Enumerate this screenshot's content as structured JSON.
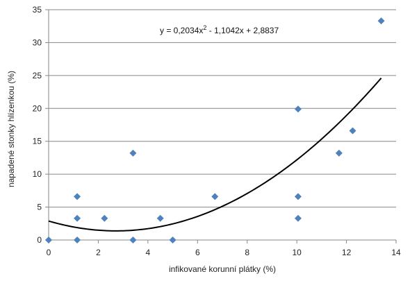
{
  "chart_data": {
    "type": "scatter",
    "title": "",
    "xlabel": "infikované korunní plátky (%)",
    "ylabel": "napadené stonky hlízenkou (%)",
    "xlim": [
      0,
      14
    ],
    "ylim": [
      0,
      35
    ],
    "x_ticks": [
      "0",
      "2",
      "4",
      "6",
      "8",
      "10",
      "12",
      "14"
    ],
    "y_ticks": [
      "0",
      "5",
      "10",
      "15",
      "20",
      "25",
      "30",
      "35"
    ],
    "grid": "horizontal",
    "colors": {
      "points": "#4f81bd",
      "trendline": "#000000",
      "grid": "#868686",
      "axis": "#868686"
    },
    "series": [
      {
        "values": [
          {
            "x": 0.0,
            "y": 0.0
          },
          {
            "x": 1.15,
            "y": 0.0
          },
          {
            "x": 1.15,
            "y": 3.3
          },
          {
            "x": 1.15,
            "y": 6.6
          },
          {
            "x": 2.25,
            "y": 3.3
          },
          {
            "x": 3.4,
            "y": 0.0
          },
          {
            "x": 3.4,
            "y": 13.2
          },
          {
            "x": 4.5,
            "y": 3.3
          },
          {
            "x": 5.0,
            "y": 0.0
          },
          {
            "x": 6.7,
            "y": 6.6
          },
          {
            "x": 10.05,
            "y": 3.3
          },
          {
            "x": 10.05,
            "y": 6.6
          },
          {
            "x": 10.05,
            "y": 19.9
          },
          {
            "x": 11.7,
            "y": 13.2
          },
          {
            "x": 12.25,
            "y": 16.6
          },
          {
            "x": 13.4,
            "y": 33.3
          }
        ]
      }
    ],
    "trendline": {
      "type": "polynomial-2",
      "coefficients": {
        "a": 0.2034,
        "b": -1.1042,
        "c": 2.8837
      },
      "x_range": [
        0,
        13.4
      ],
      "equation_text": "y = 0,2034x",
      "equation_superscript": "2",
      "equation_rest": " - 1,1042x + 2,8837"
    }
  }
}
